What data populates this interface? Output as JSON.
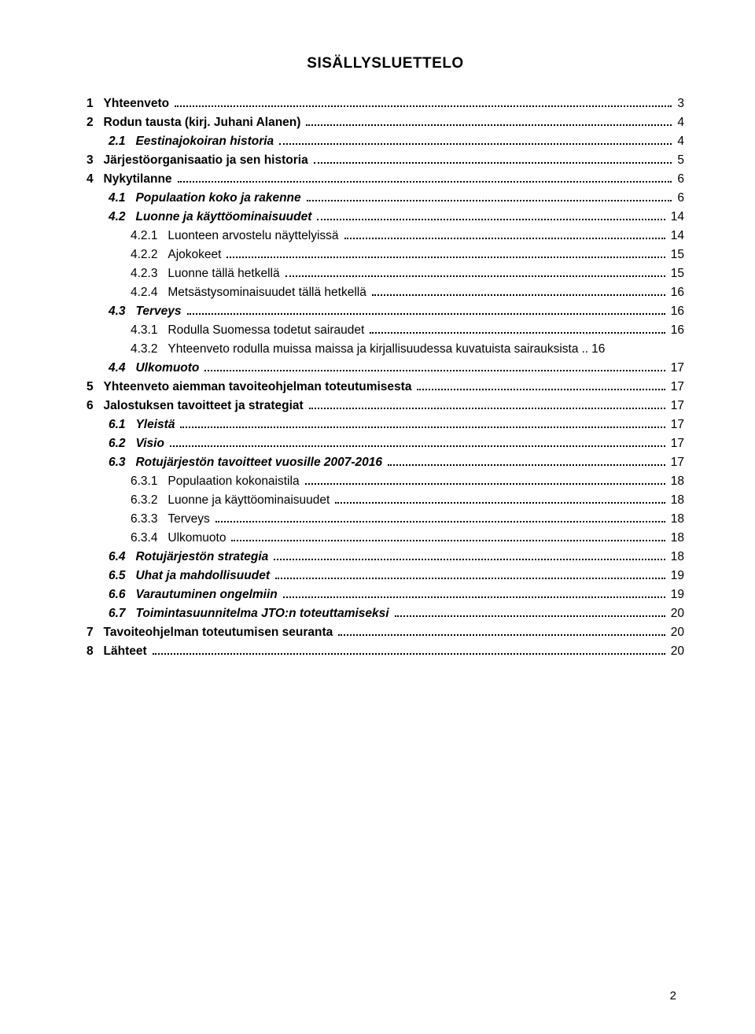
{
  "title": "SISÄLLYSLUETTELO",
  "page_number": "2",
  "toc": [
    {
      "level": 0,
      "num": "1",
      "text": "Yhteenveto",
      "page": "3",
      "bold": true,
      "italic": false
    },
    {
      "level": 0,
      "num": "2",
      "text": "Rodun tausta (kirj. Juhani Alanen)",
      "page": "4",
      "bold": true,
      "italic": false
    },
    {
      "level": 1,
      "num": "2.1",
      "text": "Eestinajokoiran historia",
      "page": "4",
      "bold": true,
      "italic": true
    },
    {
      "level": 0,
      "num": "3",
      "text": "Järjestöorganisaatio ja sen historia",
      "page": "5",
      "bold": true,
      "italic": false
    },
    {
      "level": 0,
      "num": "4",
      "text": "Nykytilanne",
      "page": "6",
      "bold": true,
      "italic": false
    },
    {
      "level": 1,
      "num": "4.1",
      "text": "Populaation koko ja rakenne",
      "page": "6",
      "bold": true,
      "italic": true
    },
    {
      "level": 1,
      "num": "4.2",
      "text": "Luonne ja käyttöominaisuudet",
      "page": "14",
      "bold": true,
      "italic": true
    },
    {
      "level": 2,
      "num": "4.2.1",
      "text": "Luonteen arvostelu näyttelyissä",
      "page": "14",
      "bold": false,
      "italic": false
    },
    {
      "level": 2,
      "num": "4.2.2",
      "text": "Ajokokeet",
      "page": "15",
      "bold": false,
      "italic": false
    },
    {
      "level": 2,
      "num": "4.2.3",
      "text": "Luonne tällä hetkellä",
      "page": "15",
      "bold": false,
      "italic": false
    },
    {
      "level": 2,
      "num": "4.2.4",
      "text": "Metsästysominaisuudet tällä hetkellä",
      "page": "16",
      "bold": false,
      "italic": false
    },
    {
      "level": 1,
      "num": "4.3",
      "text": "Terveys",
      "page": "16",
      "bold": true,
      "italic": true
    },
    {
      "level": 2,
      "num": "4.3.1",
      "text": "Rodulla Suomessa todetut sairaudet",
      "page": "16",
      "bold": false,
      "italic": false
    },
    {
      "level": 2,
      "num": "4.3.2",
      "text": "Yhteenveto rodulla muissa maissa ja kirjallisuudessa kuvatuista sairauksista",
      "page": "16",
      "bold": false,
      "italic": false,
      "nodots": true
    },
    {
      "level": 1,
      "num": "4.4",
      "text": "Ulkomuoto",
      "page": "17",
      "bold": true,
      "italic": true
    },
    {
      "level": 0,
      "num": "5",
      "text": "Yhteenveto aiemman tavoiteohjelman toteutumisesta",
      "page": "17",
      "bold": true,
      "italic": false
    },
    {
      "level": 0,
      "num": "6",
      "text": "Jalostuksen tavoitteet ja strategiat",
      "page": "17",
      "bold": true,
      "italic": false
    },
    {
      "level": 1,
      "num": "6.1",
      "text": "Yleistä",
      "page": "17",
      "bold": true,
      "italic": true
    },
    {
      "level": 1,
      "num": "6.2",
      "text": "Visio",
      "page": "17",
      "bold": true,
      "italic": true
    },
    {
      "level": 1,
      "num": "6.3",
      "text": "Rotujärjestön tavoitteet vuosille 2007-2016",
      "page": "17",
      "bold": true,
      "italic": true
    },
    {
      "level": 2,
      "num": "6.3.1",
      "text": "Populaation kokonaistila",
      "page": "18",
      "bold": false,
      "italic": false
    },
    {
      "level": 2,
      "num": "6.3.2",
      "text": "Luonne ja käyttöominaisuudet",
      "page": "18",
      "bold": false,
      "italic": false
    },
    {
      "level": 2,
      "num": "6.3.3",
      "text": "Terveys",
      "page": "18",
      "bold": false,
      "italic": false
    },
    {
      "level": 2,
      "num": "6.3.4",
      "text": "Ulkomuoto",
      "page": "18",
      "bold": false,
      "italic": false
    },
    {
      "level": 1,
      "num": "6.4",
      "text": "Rotujärjestön strategia",
      "page": "18",
      "bold": true,
      "italic": true
    },
    {
      "level": 1,
      "num": "6.5",
      "text": "Uhat ja mahdollisuudet",
      "page": "19",
      "bold": true,
      "italic": true
    },
    {
      "level": 1,
      "num": "6.6",
      "text": "Varautuminen ongelmiin",
      "page": "19",
      "bold": true,
      "italic": true
    },
    {
      "level": 1,
      "num": "6.7",
      "text": "Toimintasuunnitelma JTO:n toteuttamiseksi",
      "page": "20",
      "bold": true,
      "italic": true
    },
    {
      "level": 0,
      "num": "7",
      "text": "Tavoiteohjelman toteutumisen seuranta",
      "page": "20",
      "bold": true,
      "italic": false
    },
    {
      "level": 0,
      "num": "8",
      "text": "Lähteet",
      "page": "20",
      "bold": true,
      "italic": false
    }
  ]
}
